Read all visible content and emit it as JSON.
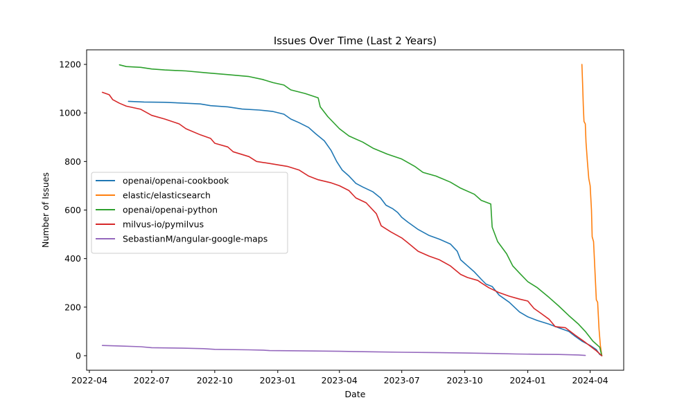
{
  "chart_data": {
    "type": "line",
    "title": "Issues Over Time (Last 2 Years)",
    "xlabel": "Date",
    "ylabel": "Number of Issues",
    "xlim": [
      "2022-03-28",
      "2024-05-20"
    ],
    "ylim": [
      -60,
      1260
    ],
    "xticks": [
      {
        "date": "2022-04-01",
        "label": "2022-04"
      },
      {
        "date": "2022-07-01",
        "label": "2022-07"
      },
      {
        "date": "2022-10-01",
        "label": "2022-10"
      },
      {
        "date": "2023-01-01",
        "label": "2023-01"
      },
      {
        "date": "2023-04-01",
        "label": "2023-04"
      },
      {
        "date": "2023-07-01",
        "label": "2023-07"
      },
      {
        "date": "2023-10-01",
        "label": "2023-10"
      },
      {
        "date": "2024-01-01",
        "label": "2024-01"
      },
      {
        "date": "2024-04-01",
        "label": "2024-04"
      }
    ],
    "yticks": [
      0,
      200,
      400,
      600,
      800,
      1000,
      1200
    ],
    "grid": false,
    "legend_position": "center-left",
    "series": [
      {
        "name": "openai/openai-cookbook",
        "color": "#1f77b4",
        "points": [
          [
            "2022-05-28",
            1048
          ],
          [
            "2022-06-20",
            1045
          ],
          [
            "2022-07-20",
            1044
          ],
          [
            "2022-08-20",
            1040
          ],
          [
            "2022-09-10",
            1037
          ],
          [
            "2022-09-25",
            1030
          ],
          [
            "2022-10-20",
            1025
          ],
          [
            "2022-11-10",
            1016
          ],
          [
            "2022-12-05",
            1012
          ],
          [
            "2022-12-25",
            1006
          ],
          [
            "2023-01-10",
            995
          ],
          [
            "2023-01-20",
            975
          ],
          [
            "2023-02-01",
            960
          ],
          [
            "2023-02-15",
            940
          ],
          [
            "2023-02-25",
            915
          ],
          [
            "2023-03-10",
            885
          ],
          [
            "2023-03-20",
            845
          ],
          [
            "2023-03-28",
            800
          ],
          [
            "2023-04-05",
            765
          ],
          [
            "2023-04-15",
            740
          ],
          [
            "2023-04-25",
            710
          ],
          [
            "2023-05-05",
            695
          ],
          [
            "2023-05-20",
            675
          ],
          [
            "2023-05-31",
            650
          ],
          [
            "2023-06-08",
            620
          ],
          [
            "2023-06-18",
            605
          ],
          [
            "2023-06-25",
            590
          ],
          [
            "2023-07-01",
            570
          ],
          [
            "2023-07-10",
            550
          ],
          [
            "2023-07-25",
            520
          ],
          [
            "2023-08-10",
            495
          ],
          [
            "2023-08-25",
            480
          ],
          [
            "2023-09-10",
            460
          ],
          [
            "2023-09-20",
            430
          ],
          [
            "2023-09-25",
            395
          ],
          [
            "2023-10-05",
            370
          ],
          [
            "2023-10-15",
            345
          ],
          [
            "2023-10-25",
            315
          ],
          [
            "2023-11-01",
            295
          ],
          [
            "2023-11-10",
            285
          ],
          [
            "2023-11-20",
            250
          ],
          [
            "2023-12-05",
            220
          ],
          [
            "2023-12-20",
            180
          ],
          [
            "2024-01-01",
            160
          ],
          [
            "2024-01-15",
            145
          ],
          [
            "2024-02-01",
            130
          ],
          [
            "2024-02-15",
            115
          ],
          [
            "2024-03-01",
            100
          ],
          [
            "2024-03-10",
            80
          ],
          [
            "2024-03-20",
            60
          ],
          [
            "2024-04-01",
            42
          ],
          [
            "2024-04-10",
            25
          ],
          [
            "2024-04-15",
            5
          ],
          [
            "2024-04-18",
            0
          ]
        ]
      },
      {
        "name": "elastic/elasticsearch",
        "color": "#ff7f0e",
        "points": [
          [
            "2024-03-20",
            1200
          ],
          [
            "2024-03-21",
            1120
          ],
          [
            "2024-03-22",
            1030
          ],
          [
            "2024-03-23",
            965
          ],
          [
            "2024-03-25",
            955
          ],
          [
            "2024-03-26",
            880
          ],
          [
            "2024-03-28",
            800
          ],
          [
            "2024-03-30",
            730
          ],
          [
            "2024-04-01",
            700
          ],
          [
            "2024-04-03",
            600
          ],
          [
            "2024-04-04",
            490
          ],
          [
            "2024-04-06",
            470
          ],
          [
            "2024-04-08",
            350
          ],
          [
            "2024-04-10",
            230
          ],
          [
            "2024-04-12",
            220
          ],
          [
            "2024-04-14",
            110
          ],
          [
            "2024-04-16",
            40
          ],
          [
            "2024-04-18",
            0
          ]
        ]
      },
      {
        "name": "openai/openai-python",
        "color": "#2ca02c",
        "points": [
          [
            "2022-05-15",
            1198
          ],
          [
            "2022-05-25",
            1191
          ],
          [
            "2022-06-15",
            1188
          ],
          [
            "2022-07-01",
            1181
          ],
          [
            "2022-07-20",
            1177
          ],
          [
            "2022-08-20",
            1173
          ],
          [
            "2022-09-20",
            1165
          ],
          [
            "2022-10-20",
            1158
          ],
          [
            "2022-11-20",
            1150
          ],
          [
            "2022-12-10",
            1138
          ],
          [
            "2022-12-25",
            1125
          ],
          [
            "2023-01-10",
            1115
          ],
          [
            "2023-01-20",
            1095
          ],
          [
            "2023-02-10",
            1080
          ],
          [
            "2023-03-01",
            1062
          ],
          [
            "2023-03-04",
            1025
          ],
          [
            "2023-03-15",
            985
          ],
          [
            "2023-04-01",
            935
          ],
          [
            "2023-04-15",
            905
          ],
          [
            "2023-05-05",
            880
          ],
          [
            "2023-05-20",
            855
          ],
          [
            "2023-06-10",
            830
          ],
          [
            "2023-07-01",
            810
          ],
          [
            "2023-07-20",
            780
          ],
          [
            "2023-08-01",
            755
          ],
          [
            "2023-08-20",
            740
          ],
          [
            "2023-09-10",
            715
          ],
          [
            "2023-09-25",
            690
          ],
          [
            "2023-10-15",
            665
          ],
          [
            "2023-10-25",
            640
          ],
          [
            "2023-11-08",
            625
          ],
          [
            "2023-11-10",
            530
          ],
          [
            "2023-11-18",
            470
          ],
          [
            "2023-12-01",
            420
          ],
          [
            "2023-12-10",
            370
          ],
          [
            "2023-12-20",
            340
          ],
          [
            "2024-01-01",
            305
          ],
          [
            "2024-01-15",
            280
          ],
          [
            "2024-02-01",
            240
          ],
          [
            "2024-02-15",
            205
          ],
          [
            "2024-03-01",
            165
          ],
          [
            "2024-03-15",
            130
          ],
          [
            "2024-03-25",
            100
          ],
          [
            "2024-04-05",
            60
          ],
          [
            "2024-04-15",
            35
          ],
          [
            "2024-04-18",
            0
          ]
        ]
      },
      {
        "name": "milvus-io/pymilvus",
        "color": "#d62728",
        "points": [
          [
            "2022-04-20",
            1085
          ],
          [
            "2022-04-30",
            1075
          ],
          [
            "2022-05-05",
            1055
          ],
          [
            "2022-05-15",
            1040
          ],
          [
            "2022-05-25",
            1028
          ],
          [
            "2022-06-15",
            1015
          ],
          [
            "2022-07-01",
            990
          ],
          [
            "2022-07-20",
            975
          ],
          [
            "2022-08-10",
            955
          ],
          [
            "2022-08-20",
            935
          ],
          [
            "2022-09-10",
            910
          ],
          [
            "2022-09-25",
            895
          ],
          [
            "2022-10-01",
            875
          ],
          [
            "2022-10-20",
            860
          ],
          [
            "2022-10-28",
            840
          ],
          [
            "2022-11-20",
            820
          ],
          [
            "2022-12-01",
            800
          ],
          [
            "2022-12-20",
            792
          ],
          [
            "2023-01-15",
            780
          ],
          [
            "2023-02-01",
            765
          ],
          [
            "2023-02-15",
            740
          ],
          [
            "2023-03-01",
            725
          ],
          [
            "2023-03-20",
            712
          ],
          [
            "2023-04-01",
            700
          ],
          [
            "2023-04-15",
            680
          ],
          [
            "2023-04-25",
            650
          ],
          [
            "2023-05-10",
            630
          ],
          [
            "2023-05-25",
            585
          ],
          [
            "2023-06-01",
            535
          ],
          [
            "2023-06-15",
            510
          ],
          [
            "2023-07-01",
            485
          ],
          [
            "2023-07-10",
            465
          ],
          [
            "2023-07-25",
            430
          ],
          [
            "2023-08-10",
            410
          ],
          [
            "2023-08-25",
            395
          ],
          [
            "2023-09-10",
            370
          ],
          [
            "2023-09-25",
            335
          ],
          [
            "2023-10-05",
            322
          ],
          [
            "2023-10-20",
            310
          ],
          [
            "2023-10-25",
            300
          ],
          [
            "2023-11-05",
            280
          ],
          [
            "2023-11-20",
            260
          ],
          [
            "2023-12-05",
            245
          ],
          [
            "2023-12-20",
            233
          ],
          [
            "2024-01-01",
            225
          ],
          [
            "2024-01-10",
            195
          ],
          [
            "2024-01-20",
            175
          ],
          [
            "2024-02-01",
            150
          ],
          [
            "2024-02-10",
            120
          ],
          [
            "2024-02-25",
            115
          ],
          [
            "2024-03-10",
            85
          ],
          [
            "2024-03-25",
            55
          ],
          [
            "2024-04-10",
            20
          ],
          [
            "2024-04-18",
            0
          ]
        ]
      },
      {
        "name": "SebastianM/angular-google-maps",
        "color": "#9467bd",
        "points": [
          [
            "2022-04-20",
            42
          ],
          [
            "2022-05-15",
            40
          ],
          [
            "2022-06-15",
            37
          ],
          [
            "2022-07-01",
            33
          ],
          [
            "2022-08-15",
            31
          ],
          [
            "2022-09-15",
            29
          ],
          [
            "2022-10-01",
            26
          ],
          [
            "2022-11-20",
            24
          ],
          [
            "2022-12-10",
            23
          ],
          [
            "2022-12-20",
            21
          ],
          [
            "2023-02-01",
            20
          ],
          [
            "2023-04-01",
            18
          ],
          [
            "2023-05-15",
            16
          ],
          [
            "2023-07-01",
            14
          ],
          [
            "2023-08-15",
            13
          ],
          [
            "2023-10-01",
            11
          ],
          [
            "2023-11-15",
            9
          ],
          [
            "2023-12-15",
            7
          ],
          [
            "2024-01-15",
            6
          ],
          [
            "2024-02-15",
            5
          ],
          [
            "2024-03-15",
            3
          ],
          [
            "2024-03-25",
            1
          ]
        ]
      }
    ]
  }
}
